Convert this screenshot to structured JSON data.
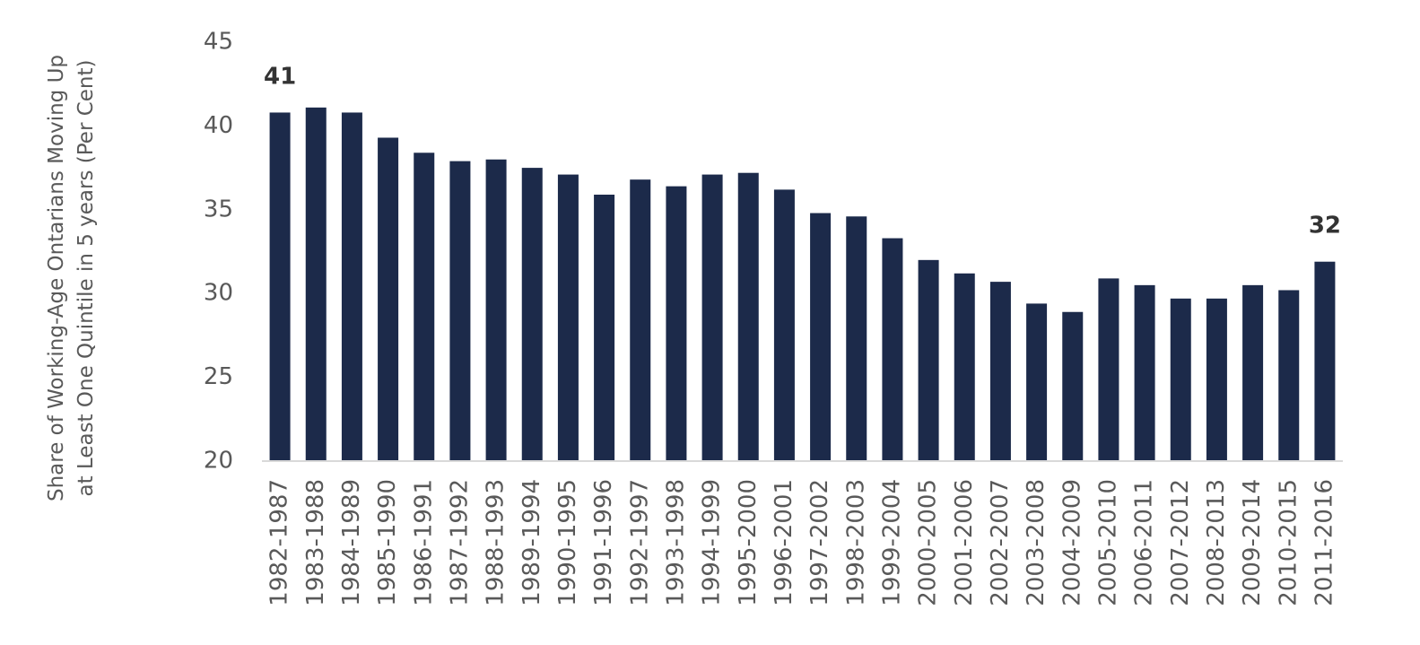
{
  "chart_data": {
    "type": "bar",
    "y_label": [
      "Share of Working-Age Ontarians Moving Up",
      "at Least One Quintile in 5 years (Per Cent)"
    ],
    "categories": [
      "1982-1987",
      "1983-1988",
      "1984-1989",
      "1985-1990",
      "1986-1991",
      "1987-1992",
      "1988-1993",
      "1989-1994",
      "1990-1995",
      "1991-1996",
      "1992-1997",
      "1993-1998",
      "1994-1999",
      "1995-2000",
      "1996-2001",
      "1997-2002",
      "1998-2003",
      "1999-2004",
      "2000-2005",
      "2001-2006",
      "2002-2007",
      "2003-2008",
      "2004-2009",
      "2005-2010",
      "2006-2011",
      "2007-2012",
      "2008-2013",
      "2009-2014",
      "2010-2015",
      "2011-2016"
    ],
    "values": [
      40.8,
      41.1,
      40.8,
      39.3,
      38.4,
      37.9,
      38.0,
      37.5,
      37.1,
      35.9,
      36.8,
      36.4,
      37.1,
      37.2,
      36.2,
      34.8,
      34.6,
      33.3,
      32.0,
      31.2,
      30.7,
      29.4,
      28.9,
      30.9,
      30.5,
      29.7,
      29.7,
      30.5,
      30.2,
      31.9
    ],
    "value_labels": [
      "41",
      null,
      null,
      null,
      null,
      null,
      null,
      null,
      null,
      null,
      null,
      null,
      null,
      null,
      null,
      null,
      null,
      null,
      null,
      null,
      null,
      null,
      null,
      null,
      null,
      null,
      null,
      null,
      null,
      "32"
    ],
    "color": "#1c2a4a",
    "ylim": [
      20,
      45
    ],
    "yticks": [
      20,
      25,
      30,
      35,
      40,
      45
    ],
    "grid": false
  }
}
